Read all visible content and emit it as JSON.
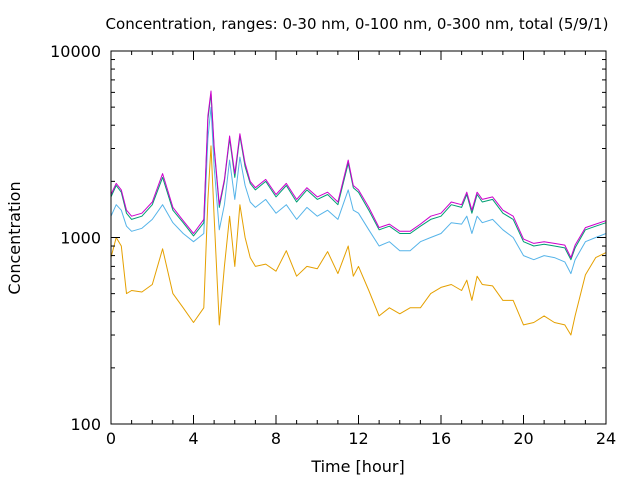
{
  "chart_data": {
    "type": "line",
    "title": "Concentration, ranges: 0-30 nm, 0-100 nm, 0-300 nm, total (5/9/1)",
    "xlabel": "Time [hour]",
    "ylabel": "Concentration",
    "xlim": [
      0,
      24
    ],
    "ylim": [
      100,
      10000
    ],
    "yscale": "log",
    "xticks": [
      0,
      4,
      8,
      12,
      16,
      20,
      24
    ],
    "yticks": [
      100,
      1000,
      10000
    ],
    "grid": false,
    "legend": "none",
    "series": [
      {
        "color": "#e5a000",
        "x": [
          0,
          0.25,
          0.5,
          0.75,
          1,
          1.5,
          2,
          2.5,
          3,
          3.5,
          4,
          4.5,
          4.7,
          4.85,
          5,
          5.25,
          5.5,
          5.75,
          6,
          6.25,
          6.5,
          6.75,
          7,
          7.5,
          8,
          8.5,
          9,
          9.5,
          10,
          10.5,
          11,
          11.5,
          11.75,
          12,
          12.5,
          13,
          13.5,
          14,
          14.5,
          15,
          15.5,
          16,
          16.5,
          17,
          17.25,
          17.5,
          17.75,
          18,
          18.5,
          19,
          19.5,
          20,
          20.5,
          21,
          21.5,
          22,
          22.3,
          22.5,
          23,
          23.5,
          24
        ],
        "values": [
          780,
          1000,
          900,
          500,
          520,
          510,
          560,
          870,
          500,
          420,
          350,
          420,
          1600,
          3100,
          1300,
          340,
          700,
          1300,
          700,
          1500,
          1000,
          780,
          700,
          720,
          660,
          850,
          620,
          700,
          680,
          840,
          640,
          900,
          620,
          700,
          520,
          380,
          420,
          390,
          420,
          420,
          500,
          540,
          560,
          520,
          590,
          460,
          620,
          560,
          550,
          460,
          460,
          340,
          350,
          380,
          350,
          340,
          300,
          380,
          630,
          780,
          830
        ]
      },
      {
        "color": "#56b4e9",
        "x": [
          0,
          0.25,
          0.5,
          0.75,
          1,
          1.5,
          2,
          2.5,
          3,
          3.5,
          4,
          4.5,
          4.7,
          4.85,
          5,
          5.25,
          5.5,
          5.75,
          6,
          6.25,
          6.5,
          6.75,
          7,
          7.5,
          8,
          8.5,
          9,
          9.5,
          10,
          10.5,
          11,
          11.5,
          11.75,
          12,
          12.5,
          13,
          13.5,
          14,
          14.5,
          15,
          15.5,
          16,
          16.5,
          17,
          17.25,
          17.5,
          17.75,
          18,
          18.5,
          19,
          19.5,
          20,
          20.5,
          21,
          21.5,
          22,
          22.3,
          22.5,
          23,
          23.5,
          24
        ],
        "values": [
          1300,
          1500,
          1400,
          1150,
          1080,
          1120,
          1250,
          1500,
          1200,
          1050,
          950,
          1050,
          3400,
          5000,
          2400,
          1100,
          1500,
          2600,
          1600,
          2700,
          1900,
          1550,
          1450,
          1600,
          1350,
          1500,
          1250,
          1450,
          1300,
          1400,
          1250,
          1800,
          1400,
          1350,
          1100,
          900,
          950,
          850,
          850,
          950,
          1000,
          1050,
          1200,
          1180,
          1300,
          1050,
          1300,
          1200,
          1250,
          1100,
          1000,
          800,
          760,
          800,
          780,
          740,
          640,
          760,
          950,
          1000,
          1050
        ]
      },
      {
        "color": "#009e73",
        "x": [
          0,
          0.25,
          0.5,
          0.75,
          1,
          1.5,
          2,
          2.5,
          3,
          3.5,
          4,
          4.5,
          4.7,
          4.85,
          5,
          5.25,
          5.5,
          5.75,
          6,
          6.25,
          6.5,
          6.75,
          7,
          7.5,
          8,
          8.5,
          9,
          9.5,
          10,
          10.5,
          11,
          11.5,
          11.75,
          12,
          12.5,
          13,
          13.5,
          14,
          14.5,
          15,
          15.5,
          16,
          16.5,
          17,
          17.25,
          17.5,
          17.75,
          18,
          18.5,
          19,
          19.5,
          20,
          20.5,
          21,
          21.5,
          22,
          22.3,
          22.5,
          23,
          23.5,
          24
        ],
        "values": [
          1650,
          1900,
          1750,
          1350,
          1250,
          1300,
          1500,
          2100,
          1400,
          1200,
          1020,
          1200,
          4300,
          5900,
          3000,
          1450,
          2000,
          3400,
          2100,
          3500,
          2400,
          1950,
          1800,
          2000,
          1650,
          1900,
          1550,
          1800,
          1600,
          1700,
          1500,
          2500,
          1850,
          1750,
          1400,
          1100,
          1150,
          1050,
          1050,
          1150,
          1250,
          1300,
          1500,
          1450,
          1700,
          1350,
          1700,
          1550,
          1600,
          1350,
          1250,
          950,
          900,
          920,
          900,
          880,
          760,
          880,
          1100,
          1150,
          1200
        ]
      },
      {
        "color": "#cc00cc",
        "x": [
          0,
          0.25,
          0.5,
          0.75,
          1,
          1.5,
          2,
          2.5,
          3,
          3.5,
          4,
          4.5,
          4.7,
          4.85,
          5,
          5.25,
          5.5,
          5.75,
          6,
          6.25,
          6.5,
          6.75,
          7,
          7.5,
          8,
          8.5,
          9,
          9.5,
          10,
          10.5,
          11,
          11.5,
          11.75,
          12,
          12.5,
          13,
          13.5,
          14,
          14.5,
          15,
          15.5,
          16,
          16.5,
          17,
          17.25,
          17.5,
          17.75,
          18,
          18.5,
          19,
          19.5,
          20,
          20.5,
          21,
          21.5,
          22,
          22.3,
          22.5,
          23,
          23.5,
          24
        ],
        "values": [
          1700,
          1950,
          1800,
          1400,
          1300,
          1350,
          1550,
          2200,
          1450,
          1230,
          1050,
          1250,
          4500,
          6100,
          3100,
          1500,
          2050,
          3500,
          2200,
          3600,
          2500,
          2000,
          1850,
          2050,
          1700,
          1950,
          1600,
          1850,
          1650,
          1750,
          1550,
          2600,
          1900,
          1800,
          1450,
          1130,
          1180,
          1080,
          1080,
          1180,
          1300,
          1350,
          1550,
          1500,
          1750,
          1400,
          1750,
          1600,
          1650,
          1400,
          1300,
          980,
          930,
          950,
          930,
          910,
          780,
          910,
          1130,
          1180,
          1230
        ]
      }
    ]
  }
}
